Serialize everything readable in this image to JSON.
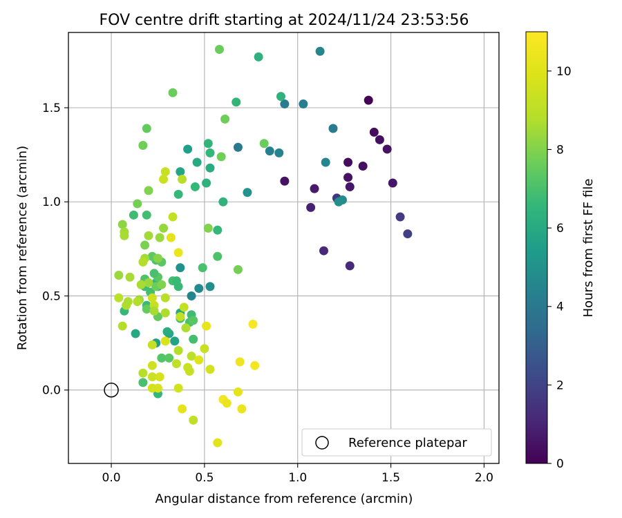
{
  "chart_data": {
    "type": "scatter",
    "title": "FOV centre drift starting at 2024/11/24 23:53:56",
    "xlabel": "Angular distance from reference (arcmin)",
    "ylabel": "Rotation from reference (arcmin)",
    "xlim": [
      -0.23,
      2.08
    ],
    "ylim": [
      -0.39,
      1.9
    ],
    "x_ticks": [
      "0.0",
      "0.5",
      "1.0",
      "1.5",
      "2.0"
    ],
    "x_tick_values": [
      0,
      0.5,
      1.0,
      1.5,
      2.0
    ],
    "y_ticks": [
      "0.0",
      "0.5",
      "1.0",
      "1.5"
    ],
    "y_tick_values": [
      0,
      0.5,
      1.0,
      1.5
    ],
    "grid": true,
    "legend_position": "bottom-right",
    "reference": {
      "label": "Reference platepar",
      "x": 0,
      "y": 0
    },
    "colorbar": {
      "label": "Hours from first FF file",
      "min": 0,
      "max": 11,
      "ticks": [
        "0",
        "2",
        "4",
        "6",
        "8",
        "10"
      ],
      "tick_values": [
        0,
        2,
        4,
        6,
        8,
        10
      ],
      "colormap": "viridis"
    },
    "points": [
      [
        1.38,
        1.54,
        0.1
      ],
      [
        1.41,
        1.37,
        0.3
      ],
      [
        1.44,
        1.33,
        0.4
      ],
      [
        1.48,
        1.28,
        0.5
      ],
      [
        1.51,
        1.1,
        0.6
      ],
      [
        1.55,
        0.92,
        1.7
      ],
      [
        1.59,
        0.83,
        1.9
      ],
      [
        1.27,
        1.21,
        0.3
      ],
      [
        1.35,
        1.19,
        0.4
      ],
      [
        1.27,
        1.13,
        0.5
      ],
      [
        1.28,
        1.08,
        0.6
      ],
      [
        1.09,
        1.07,
        0.7
      ],
      [
        0.93,
        1.11,
        0.5
      ],
      [
        1.07,
        0.97,
        0.9
      ],
      [
        1.21,
        1.02,
        1.6
      ],
      [
        1.14,
        0.74,
        1.1
      ],
      [
        1.28,
        0.66,
        1.2
      ],
      [
        1.12,
        1.8,
        4.6
      ],
      [
        1.03,
        1.52,
        4.2
      ],
      [
        0.93,
        1.52,
        4.1
      ],
      [
        1.19,
        1.39,
        4.1
      ],
      [
        1.15,
        1.21,
        4.5
      ],
      [
        0.68,
        1.29,
        4.0
      ],
      [
        0.85,
        1.27,
        4.3
      ],
      [
        0.9,
        1.26,
        4.4
      ],
      [
        1.24,
        1.01,
        4.8
      ],
      [
        1.22,
        1.0,
        4.9
      ],
      [
        0.73,
        1.05,
        5.1
      ],
      [
        0.47,
        0.54,
        4.7
      ],
      [
        0.53,
        0.55,
        4.9
      ],
      [
        0.43,
        0.5,
        4.5
      ],
      [
        0.37,
        0.65,
        5.0
      ],
      [
        0.41,
        1.28,
        5.6
      ],
      [
        0.79,
        1.77,
        6.3
      ],
      [
        0.91,
        1.56,
        6.4
      ],
      [
        0.67,
        1.53,
        6.5
      ],
      [
        0.52,
        1.31,
        6.5
      ],
      [
        0.53,
        1.26,
        6.6
      ],
      [
        0.37,
        1.16,
        5.8
      ],
      [
        0.46,
        1.21,
        6.0
      ],
      [
        0.53,
        1.18,
        6.1
      ],
      [
        0.51,
        1.1,
        6.3
      ],
      [
        0.45,
        1.08,
        6.6
      ],
      [
        0.36,
        1.04,
        6.6
      ],
      [
        0.6,
        1.0,
        6.4
      ],
      [
        0.57,
        0.85,
        6.6
      ],
      [
        0.57,
        0.71,
        7.1
      ],
      [
        0.49,
        0.65,
        7.0
      ],
      [
        0.33,
        0.58,
        6.9
      ],
      [
        0.35,
        0.58,
        6.7
      ],
      [
        0.36,
        0.55,
        6.7
      ],
      [
        0.31,
        0.3,
        5.8
      ],
      [
        0.34,
        0.26,
        5.7
      ],
      [
        0.24,
        0.25,
        5.6
      ],
      [
        0.3,
        0.31,
        6.1
      ],
      [
        0.37,
        0.41,
        6.0
      ],
      [
        0.43,
        0.4,
        6.8
      ],
      [
        0.13,
        0.3,
        5.9
      ],
      [
        0.19,
        0.45,
        6.7
      ],
      [
        0.25,
        0.55,
        6.4
      ],
      [
        0.25,
        0.56,
        6.1
      ],
      [
        0.24,
        0.57,
        6.5
      ],
      [
        0.18,
        0.55,
        6.8
      ],
      [
        0.21,
        0.52,
        6.9
      ],
      [
        0.25,
        0.6,
        7.3
      ],
      [
        0.23,
        0.62,
        7.0
      ],
      [
        0.18,
        0.59,
        7.1
      ],
      [
        0.24,
        0.69,
        7.1
      ],
      [
        0.27,
        0.68,
        7.3
      ],
      [
        0.22,
        0.71,
        7.4
      ],
      [
        0.25,
        -0.02,
        6.6
      ],
      [
        0.07,
        0.42,
        6.6
      ],
      [
        0.17,
        0.04,
        7.0
      ],
      [
        0.12,
        0.93,
        6.8
      ],
      [
        0.19,
        0.93,
        6.9
      ],
      [
        0.27,
        0.17,
        7.2
      ],
      [
        0.44,
        0.27,
        6.9
      ],
      [
        0.42,
        0.36,
        7.0
      ],
      [
        0.37,
        0.38,
        7.1
      ],
      [
        0.44,
        0.37,
        7.3
      ],
      [
        0.19,
        0.43,
        7.5
      ],
      [
        0.25,
        0.39,
        7.5
      ],
      [
        0.31,
        0.17,
        7.3
      ],
      [
        0.24,
        0.55,
        7.6
      ],
      [
        0.58,
        1.81,
        7.6
      ],
      [
        0.61,
        1.44,
        7.7
      ],
      [
        0.33,
        1.58,
        7.6
      ],
      [
        0.19,
        1.39,
        7.5
      ],
      [
        0.17,
        1.3,
        7.7
      ],
      [
        0.59,
        1.24,
        7.7
      ],
      [
        0.82,
        1.31,
        7.6
      ],
      [
        0.14,
        0.99,
        7.8
      ],
      [
        0.2,
        1.06,
        8.0
      ],
      [
        0.68,
        0.64,
        7.8
      ],
      [
        0.52,
        0.86,
        8.0
      ],
      [
        0.28,
        0.86,
        8.3
      ],
      [
        0.06,
        0.88,
        8.2
      ],
      [
        0.07,
        0.84,
        8.5
      ],
      [
        0.07,
        0.82,
        8.6
      ],
      [
        0.18,
        0.77,
        7.9
      ],
      [
        0.2,
        0.82,
        8.5
      ],
      [
        0.26,
        0.81,
        8.4
      ],
      [
        0.25,
        0.7,
        8.1
      ],
      [
        0.18,
        0.7,
        8.5
      ],
      [
        0.17,
        0.68,
        8.8
      ],
      [
        0.27,
        0.56,
        8.0
      ],
      [
        0.2,
        0.57,
        8.4
      ],
      [
        0.16,
        0.56,
        8.6
      ],
      [
        0.04,
        0.61,
        8.4
      ],
      [
        0.1,
        0.6,
        8.6
      ],
      [
        0.15,
        0.48,
        8.4
      ],
      [
        0.14,
        0.47,
        8.8
      ],
      [
        0.09,
        0.47,
        8.7
      ],
      [
        0.08,
        0.45,
        8.7
      ],
      [
        0.04,
        0.49,
        9.0
      ],
      [
        0.29,
        0.49,
        8.9
      ],
      [
        0.22,
        0.49,
        9.5
      ],
      [
        0.23,
        0.45,
        9.3
      ],
      [
        0.39,
        0.44,
        9.2
      ],
      [
        0.23,
        0.42,
        8.6
      ],
      [
        0.29,
        0.41,
        8.7
      ],
      [
        0.37,
        0.39,
        9.1
      ],
      [
        0.06,
        0.34,
        8.8
      ],
      [
        0.4,
        0.33,
        8.7
      ],
      [
        0.22,
        0.24,
        9.3
      ],
      [
        0.29,
        0.26,
        9.8
      ],
      [
        0.36,
        0.21,
        8.8
      ],
      [
        0.5,
        0.22,
        9.3
      ],
      [
        0.43,
        0.18,
        9.0
      ],
      [
        0.35,
        0.14,
        9.1
      ],
      [
        0.41,
        0.12,
        9.4
      ],
      [
        0.42,
        0.1,
        9.3
      ],
      [
        0.22,
        0.13,
        9.5
      ],
      [
        0.53,
        0.11,
        9.6
      ],
      [
        0.17,
        0.09,
        8.9
      ],
      [
        0.22,
        0.07,
        9.4
      ],
      [
        0.26,
        0.07,
        9.7
      ],
      [
        0.22,
        0.01,
        9.6
      ],
      [
        0.25,
        0.01,
        9.7
      ],
      [
        0.36,
        0.01,
        9.6
      ],
      [
        0.44,
        -0.16,
        9.1
      ],
      [
        0.33,
        0.92,
        9.2
      ],
      [
        0.29,
        1.16,
        9.3
      ],
      [
        0.28,
        1.12,
        9.4
      ],
      [
        0.38,
        1.12,
        8.9
      ],
      [
        0.32,
        0.81,
        10.2
      ],
      [
        0.36,
        0.73,
        10.4
      ],
      [
        0.47,
        0.16,
        10.0
      ],
      [
        0.51,
        0.34,
        10.3
      ],
      [
        0.68,
        -0.01,
        10.2
      ],
      [
        0.69,
        0.15,
        10.5
      ],
      [
        0.6,
        -0.05,
        10.6
      ],
      [
        0.62,
        -0.07,
        10.4
      ],
      [
        0.7,
        -0.1,
        10.4
      ],
      [
        0.38,
        -0.1,
        10.2
      ],
      [
        0.57,
        -0.28,
        10.1
      ],
      [
        0.76,
        0.35,
        10.8
      ],
      [
        0.77,
        0.13,
        10.7
      ]
    ]
  }
}
